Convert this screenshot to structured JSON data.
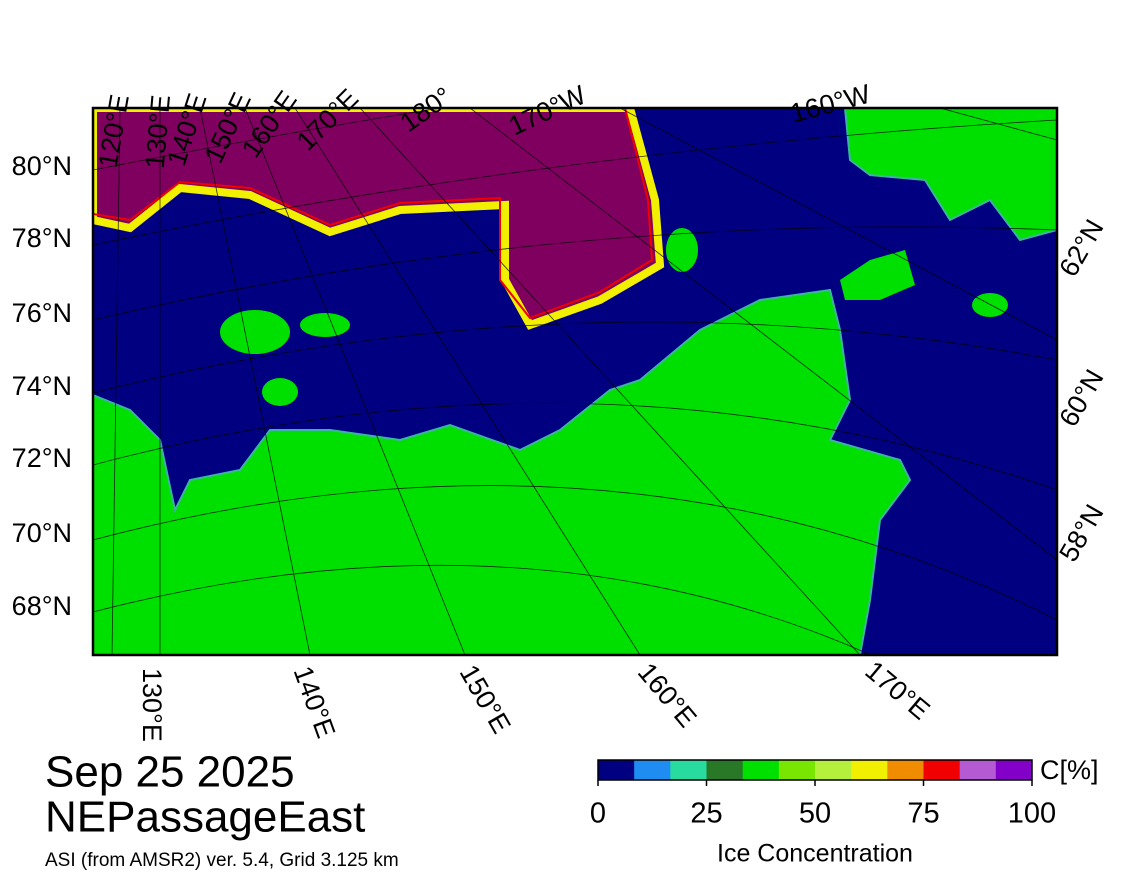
{
  "header": {
    "date": "Sep 25 2025",
    "region": "NEPassageEast",
    "source": "ASI (from AMSR2) ver. 5.4,  Grid 3.125 km"
  },
  "map": {
    "top_labels": [
      "120°E",
      "130°E",
      "140°E",
      "150°E",
      "160°E",
      "170°E",
      "180°",
      "170°W",
      "160°W"
    ],
    "left_labels": [
      "80°N",
      "78°N",
      "76°N",
      "74°N",
      "72°N",
      "70°N",
      "68°N"
    ],
    "bottom_labels": [
      "130°E",
      "140°E",
      "150°E",
      "160°E",
      "170°E"
    ],
    "right_labels": [
      "62°N",
      "60°N",
      "58°N"
    ]
  },
  "colorbar": {
    "title": "Ice Concentration",
    "unit": "C[%]",
    "lim": [
      0,
      100
    ],
    "ticks": [
      0,
      25,
      50,
      75,
      100
    ],
    "colors": [
      "#000080",
      "#1e8cf0",
      "#28dca0",
      "#287828",
      "#00e000",
      "#78e600",
      "#b4f03c",
      "#f0f000",
      "#f08c00",
      "#f00000",
      "#b45ad2",
      "#8200c8"
    ]
  }
}
